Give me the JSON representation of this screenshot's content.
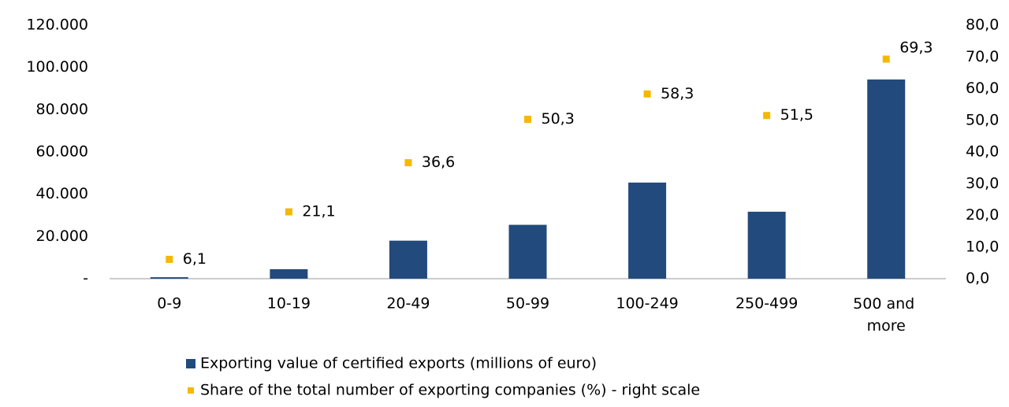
{
  "chart_data": {
    "type": "bar",
    "categories": [
      "0-9",
      "10-19",
      "20-49",
      "50-99",
      "100-249",
      "250-499",
      "500 and more"
    ],
    "series": [
      {
        "name": "Exporting value of certified exports (millions of euro)",
        "type": "bar",
        "color": "#234a7c",
        "values": [
          700,
          4500,
          18000,
          25500,
          45500,
          31700,
          94300
        ]
      },
      {
        "name": "Share of the total number of exporting companies (%) - right scale",
        "type": "scatter",
        "axis": "y2",
        "color": "#f5b800",
        "values": [
          6.1,
          21.1,
          36.6,
          50.3,
          58.3,
          51.5,
          69.3
        ],
        "value_labels": [
          "6,1",
          "21,1",
          "36,6",
          "50,3",
          "58,3",
          "51,5",
          "69,3"
        ]
      }
    ],
    "ylim": [
      0,
      120000
    ],
    "yticks": [
      {
        "value": 0,
        "label": "-"
      },
      {
        "value": 20000,
        "label": "20.000"
      },
      {
        "value": 40000,
        "label": "40.000"
      },
      {
        "value": 60000,
        "label": "60.000"
      },
      {
        "value": 80000,
        "label": "80.000"
      },
      {
        "value": 100000,
        "label": "100.000"
      },
      {
        "value": 120000,
        "label": "120.000"
      }
    ],
    "y2lim": [
      0,
      80
    ],
    "y2ticks": [
      {
        "value": 0,
        "label": "0,0"
      },
      {
        "value": 10,
        "label": "10,0"
      },
      {
        "value": 20,
        "label": "20,0"
      },
      {
        "value": 30,
        "label": "30,0"
      },
      {
        "value": 40,
        "label": "40,0"
      },
      {
        "value": 50,
        "label": "50,0"
      },
      {
        "value": 60,
        "label": "60,0"
      },
      {
        "value": 70,
        "label": "70,0"
      },
      {
        "value": 80,
        "label": "80,0"
      }
    ],
    "legend": "bottom"
  }
}
